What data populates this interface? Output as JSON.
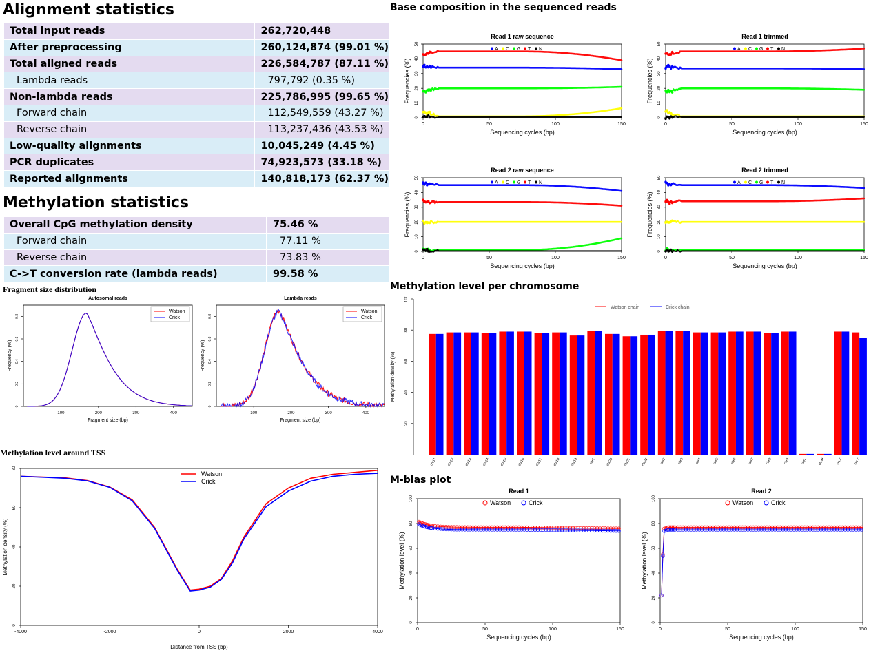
{
  "alignment": {
    "title": "Alignment statistics",
    "rows": [
      {
        "label": "Total input reads",
        "value": "262,720,448",
        "bold": true,
        "sub": false,
        "bg": "pu"
      },
      {
        "label": "After preprocessing",
        "value": "260,124,874 (99.01 %)",
        "bold": true,
        "sub": false,
        "bg": "bl"
      },
      {
        "label": "Total aligned reads",
        "value": "226,584,787 (87.11 %)",
        "bold": true,
        "sub": false,
        "bg": "pu"
      },
      {
        "label": "Lambda reads",
        "value": "797,792 (0.35 %)",
        "bold": false,
        "sub": true,
        "bg": "bl"
      },
      {
        "label": "Non-lambda reads",
        "value": "225,786,995 (99.65 %)",
        "bold": true,
        "sub": false,
        "bg": "pu"
      },
      {
        "label": "Forward chain",
        "value": "112,549,559 (43.27 %)",
        "bold": false,
        "sub": true,
        "bg": "bl"
      },
      {
        "label": "Reverse chain",
        "value": "113,237,436 (43.53 %)",
        "bold": false,
        "sub": true,
        "bg": "pu"
      },
      {
        "label": "Low-quality alignments",
        "value": "10,045,249 (4.45 %)",
        "bold": true,
        "sub": false,
        "bg": "bl"
      },
      {
        "label": "PCR duplicates",
        "value": "74,923,573 (33.18 %)",
        "bold": true,
        "sub": false,
        "bg": "pu"
      },
      {
        "label": "Reported alignments",
        "value": "140,818,173 (62.37 %)",
        "bold": true,
        "sub": false,
        "bg": "bl"
      }
    ]
  },
  "methylation": {
    "title": "Methylation statistics",
    "rows": [
      {
        "label": "Overall CpG methylation density",
        "value": "75.46 %",
        "bold": true,
        "sub": false,
        "bg": "pu"
      },
      {
        "label": "Forward chain",
        "value": "77.11 %",
        "bold": false,
        "sub": true,
        "bg": "bl"
      },
      {
        "label": "Reverse chain",
        "value": "73.83 %",
        "bold": false,
        "sub": true,
        "bg": "pu"
      },
      {
        "label": "C->T conversion rate (lambda reads)",
        "value": "99.58 %",
        "bold": true,
        "sub": false,
        "bg": "bl"
      }
    ]
  },
  "sections": {
    "base_composition": "Base composition in the sequenced reads",
    "fragment_size": "Fragment size distribution",
    "tss": "Methylation level around TSS",
    "per_chromosome": "Methylation level per chromosome",
    "mbias": "M-bias plot"
  },
  "colors": {
    "A": "#0000ff",
    "C": "#ffff00",
    "G": "#00ff00",
    "T": "#ff0000",
    "N": "#000000",
    "watson": "#ff0000",
    "crick": "#0000ff",
    "purple_row": "#e4dbf0",
    "blue_row": "#d9edf7"
  },
  "chart_data": [
    {
      "id": "bc-r1-raw",
      "type": "scatter",
      "title": "Read 1 raw sequence",
      "xlabel": "Sequencing cycles (bp)",
      "ylabel": "Frequencies (%)",
      "xlim": [
        0,
        150
      ],
      "ylim": [
        0,
        50
      ],
      "xticks": [
        0,
        50,
        100,
        150
      ],
      "yticks": [
        0,
        10,
        20,
        30,
        40,
        50
      ],
      "legend": [
        "A",
        "C",
        "G",
        "T",
        "N"
      ],
      "series": [
        {
          "name": "A",
          "values": {
            "start": 35,
            "mid": 34,
            "end": 33
          }
        },
        {
          "name": "C",
          "values": {
            "start": 4,
            "mid": 1,
            "end": 6.5
          }
        },
        {
          "name": "G",
          "values": {
            "start": 18,
            "mid": 20,
            "end": 21
          }
        },
        {
          "name": "T",
          "values": {
            "start": 43,
            "mid": 45,
            "end": 39
          }
        },
        {
          "name": "N",
          "values": {
            "start": 0.5,
            "mid": 0.5,
            "end": 0.5
          }
        }
      ]
    },
    {
      "id": "bc-r1-trim",
      "type": "scatter",
      "title": "Read 1 trimmed",
      "xlabel": "Sequencing cycles (bp)",
      "ylabel": "Frequencies (%)",
      "xlim": [
        0,
        150
      ],
      "ylim": [
        0,
        50
      ],
      "xticks": [
        0,
        50,
        100,
        150
      ],
      "yticks": [
        0,
        10,
        20,
        30,
        40,
        50
      ],
      "legend": [
        "A",
        "C",
        "G",
        "T",
        "N"
      ],
      "series": [
        {
          "name": "A",
          "values": {
            "start": 35,
            "mid": 33.5,
            "end": 33
          }
        },
        {
          "name": "C",
          "values": {
            "start": 4,
            "mid": 1,
            "end": 1
          }
        },
        {
          "name": "G",
          "values": {
            "start": 18,
            "mid": 20,
            "end": 19
          }
        },
        {
          "name": "T",
          "values": {
            "start": 43,
            "mid": 45,
            "end": 47
          }
        },
        {
          "name": "N",
          "values": {
            "start": 0.5,
            "mid": 0.5,
            "end": 0.5
          }
        }
      ]
    },
    {
      "id": "bc-r2-raw",
      "type": "scatter",
      "title": "Read 2 raw sequence",
      "xlabel": "Sequencing cycles (bp)",
      "ylabel": "Frequencies (%)",
      "xlim": [
        0,
        150
      ],
      "ylim": [
        0,
        50
      ],
      "xticks": [
        0,
        50,
        100,
        150
      ],
      "yticks": [
        0,
        10,
        20,
        30,
        40,
        50
      ],
      "legend": [
        "A",
        "C",
        "G",
        "T",
        "N"
      ],
      "series": [
        {
          "name": "A",
          "values": {
            "start": 46,
            "mid": 45,
            "end": 41
          }
        },
        {
          "name": "C",
          "values": {
            "start": 20,
            "mid": 20,
            "end": 20
          }
        },
        {
          "name": "G",
          "values": {
            "start": 1,
            "mid": 1,
            "end": 9
          }
        },
        {
          "name": "T",
          "values": {
            "start": 34,
            "mid": 33.5,
            "end": 31
          }
        },
        {
          "name": "N",
          "values": {
            "start": 0.3,
            "mid": 0.3,
            "end": 0.3
          }
        }
      ]
    },
    {
      "id": "bc-r2-trim",
      "type": "scatter",
      "title": "Read 2 trimmed",
      "xlabel": "Sequencing cycles (bp)",
      "ylabel": "Frequencies (%)",
      "xlim": [
        0,
        150
      ],
      "ylim": [
        0,
        50
      ],
      "xticks": [
        0,
        50,
        100,
        150
      ],
      "yticks": [
        0,
        10,
        20,
        30,
        40,
        50
      ],
      "legend": [
        "A",
        "C",
        "G",
        "T",
        "N"
      ],
      "series": [
        {
          "name": "A",
          "values": {
            "start": 46,
            "mid": 45,
            "end": 43
          }
        },
        {
          "name": "C",
          "values": {
            "start": 20,
            "mid": 20,
            "end": 20
          }
        },
        {
          "name": "G",
          "values": {
            "start": 1,
            "mid": 1,
            "end": 1
          }
        },
        {
          "name": "T",
          "values": {
            "start": 34,
            "mid": 34,
            "end": 36
          }
        },
        {
          "name": "N",
          "values": {
            "start": 0.3,
            "mid": 0.3,
            "end": 0.3
          }
        }
      ]
    },
    {
      "id": "frag-auto",
      "type": "line",
      "title": "Autosomal reads",
      "xlabel": "Fragment size (bp)",
      "ylabel": "Frequency (%)",
      "xlim": [
        0,
        450
      ],
      "ylim": [
        0,
        0.9
      ],
      "xticks": [
        100,
        200,
        300,
        400
      ],
      "yticks": [
        0,
        0.2,
        0.4,
        0.6,
        0.8
      ],
      "legend": [
        "Watson",
        "Crick"
      ],
      "series": [
        {
          "name": "Watson",
          "peak": 0.83,
          "peak_x": 168
        },
        {
          "name": "Crick",
          "peak": 0.83,
          "peak_x": 168
        }
      ]
    },
    {
      "id": "frag-lambda",
      "type": "line",
      "title": "Lambda reads",
      "xlabel": "Fragment size (bp)",
      "ylabel": "Frequency (%)",
      "xlim": [
        0,
        450
      ],
      "ylim": [
        0,
        0.9
      ],
      "xticks": [
        100,
        200,
        300,
        400
      ],
      "yticks": [
        0,
        0.2,
        0.4,
        0.6,
        0.8
      ],
      "legend": [
        "Watson",
        "Crick"
      ],
      "series": [
        {
          "name": "Watson",
          "peak": 0.85,
          "peak_x": 168
        },
        {
          "name": "Crick",
          "peak": 0.84,
          "peak_x": 168
        }
      ]
    },
    {
      "id": "tss",
      "type": "line",
      "title": "",
      "xlabel": "Distance from TSS (bp)",
      "ylabel": "Methylation density (%)",
      "xlim": [
        -4000,
        4000
      ],
      "ylim": [
        0,
        80
      ],
      "xticks": [
        -4000,
        -2000,
        0,
        2000,
        4000
      ],
      "yticks": [
        0,
        20,
        40,
        60,
        80
      ],
      "legend": [
        "Watson",
        "Crick"
      ],
      "x": [
        -4000,
        -3500,
        -3000,
        -2500,
        -2000,
        -1500,
        -1000,
        -500,
        -200,
        0,
        250,
        500,
        750,
        1000,
        1500,
        2000,
        2500,
        3000,
        3500,
        4000
      ],
      "series": [
        {
          "name": "Watson",
          "values": [
            76,
            75.6,
            75.2,
            73.8,
            70.5,
            64,
            50,
            29,
            18,
            18.5,
            20,
            24,
            33,
            45,
            62,
            70,
            75,
            77,
            78,
            79
          ]
        },
        {
          "name": "Crick",
          "values": [
            76,
            75.5,
            75,
            73.6,
            70.3,
            63.5,
            49.5,
            28.5,
            17.5,
            18,
            19.5,
            23.5,
            32,
            44,
            60.5,
            68.5,
            73.5,
            76,
            77,
            77.5
          ]
        }
      ]
    },
    {
      "id": "chrom",
      "type": "bar",
      "title": "",
      "xlabel": "",
      "ylabel": "Methylation density (%)",
      "ylim": [
        0,
        100
      ],
      "yticks": [
        20,
        40,
        60,
        80,
        100
      ],
      "legend": [
        "Watson chain",
        "Crick chain"
      ],
      "categories": [
        "chr11",
        "chr12",
        "chr13",
        "chr14",
        "chr15",
        "chr16",
        "chr17",
        "chr18",
        "chr19",
        "chr1",
        "chr20",
        "chr21",
        "chr22",
        "chr2",
        "chr3",
        "chr4",
        "chr5",
        "chr6",
        "chr7",
        "chr8",
        "chr9",
        "chrL",
        "chrM",
        "chrX",
        "chrY"
      ],
      "series": [
        {
          "name": "Watson chain",
          "values": [
            77.5,
            78.5,
            78.5,
            78,
            79,
            79,
            78,
            78.5,
            76.5,
            79.5,
            77.5,
            76,
            77,
            79.5,
            79.5,
            78.5,
            78.5,
            79,
            79,
            78,
            79,
            0.5,
            0.5,
            79,
            78.5
          ]
        },
        {
          "name": "Crick chain",
          "values": [
            77.5,
            78.5,
            78.5,
            78,
            79,
            79,
            78,
            78.5,
            76.5,
            79.5,
            77.5,
            76,
            77,
            79.5,
            79.5,
            78.5,
            78.5,
            79,
            79,
            78,
            79,
            0.5,
            0.5,
            79,
            75
          ]
        }
      ]
    },
    {
      "id": "mbias-r1",
      "type": "scatter",
      "title": "Read 1",
      "xlabel": "Sequencing cycles (bp)",
      "ylabel": "Methylation level (%)",
      "xlim": [
        0,
        150
      ],
      "ylim": [
        0,
        100
      ],
      "xticks": [
        0,
        50,
        100,
        150
      ],
      "yticks": [
        0,
        20,
        40,
        60,
        80,
        100
      ],
      "legend": [
        "Watson",
        "Crick"
      ],
      "series": [
        {
          "name": "Watson",
          "values": {
            "start": 82,
            "mid": 77,
            "end": 76
          }
        },
        {
          "name": "Crick",
          "values": {
            "start": 80,
            "mid": 75,
            "end": 74
          }
        }
      ]
    },
    {
      "id": "mbias-r2",
      "type": "scatter",
      "title": "Read 2",
      "xlabel": "Sequencing cycles (bp)",
      "ylabel": "Methylation level (%)",
      "xlim": [
        0,
        150
      ],
      "ylim": [
        0,
        100
      ],
      "xticks": [
        0,
        50,
        100,
        150
      ],
      "yticks": [
        0,
        20,
        40,
        60,
        80,
        100
      ],
      "legend": [
        "Watson",
        "Crick"
      ],
      "series": [
        {
          "name": "Watson",
          "values": {
            "start": 22,
            "mid": 77,
            "end": 77
          }
        },
        {
          "name": "Crick",
          "values": {
            "start": 22,
            "mid": 75,
            "end": 75
          }
        }
      ]
    }
  ]
}
